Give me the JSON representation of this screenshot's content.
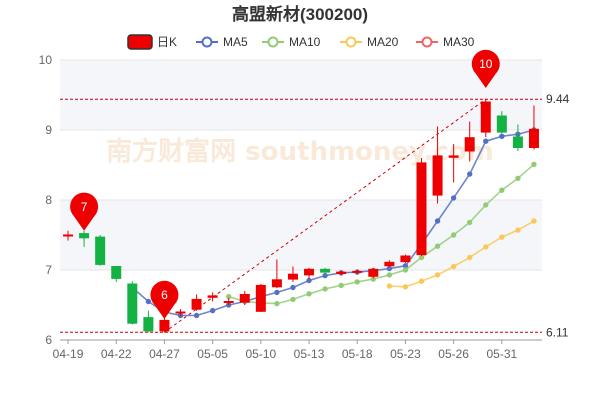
{
  "chart_data": {
    "type": "candlestick",
    "title": "高盟新材(300200)",
    "legend": [
      {
        "name": "日K",
        "color": "#ee0000"
      },
      {
        "name": "MA5",
        "color": "#5470c6"
      },
      {
        "name": "MA10",
        "color": "#91cc75"
      },
      {
        "name": "MA20",
        "color": "#fac858"
      },
      {
        "name": "MA30",
        "color": "#ee6666"
      }
    ],
    "legend_position": "top",
    "grid": true,
    "ylim": [
      6,
      10
    ],
    "yticks": [
      "6",
      "7",
      "8",
      "9",
      "10"
    ],
    "xticks": [
      "04-19",
      "04-22",
      "04-27",
      "05-05",
      "05-10",
      "05-13",
      "05-18",
      "05-23",
      "05-26",
      "05-31"
    ],
    "colors": {
      "up": "#ee0000",
      "down": "#14b143",
      "ref_line": "#cc0000",
      "pin": "#ee0000",
      "trend": "#cc0000"
    },
    "candles": [
      {
        "date": "04-19",
        "open": 7.49,
        "close": 7.5,
        "high": 7.56,
        "low": 7.42
      },
      {
        "date": "04-20",
        "open": 7.52,
        "close": 7.46,
        "high": 7.56,
        "low": 7.33
      },
      {
        "date": "04-21",
        "open": 7.47,
        "close": 7.08,
        "high": 7.5,
        "low": 7.06
      },
      {
        "date": "04-22",
        "open": 7.05,
        "close": 6.88,
        "high": 7.05,
        "low": 6.83
      },
      {
        "date": "04-25",
        "open": 6.8,
        "close": 6.24,
        "high": 6.84,
        "low": 6.22
      },
      {
        "date": "04-26",
        "open": 6.32,
        "close": 6.13,
        "high": 6.42,
        "low": 6.11
      },
      {
        "date": "04-27",
        "open": 6.13,
        "close": 6.28,
        "high": 6.34,
        "low": 6.11
      },
      {
        "date": "04-28",
        "open": 6.4,
        "close": 6.4,
        "high": 6.44,
        "low": 6.34
      },
      {
        "date": "04-29",
        "open": 6.44,
        "close": 6.58,
        "high": 6.65,
        "low": 6.42
      },
      {
        "date": "05-05",
        "open": 6.61,
        "close": 6.63,
        "high": 6.68,
        "low": 6.55
      },
      {
        "date": "05-06",
        "open": 6.55,
        "close": 6.55,
        "high": 6.6,
        "low": 6.5
      },
      {
        "date": "05-09",
        "open": 6.54,
        "close": 6.65,
        "high": 6.7,
        "low": 6.5
      },
      {
        "date": "05-10",
        "open": 6.41,
        "close": 6.78,
        "high": 6.8,
        "low": 6.4
      },
      {
        "date": "05-11",
        "open": 6.76,
        "close": 6.86,
        "high": 7.15,
        "low": 6.74
      },
      {
        "date": "05-12",
        "open": 6.87,
        "close": 6.94,
        "high": 7.05,
        "low": 6.83
      },
      {
        "date": "05-13",
        "open": 6.93,
        "close": 7.01,
        "high": 7.03,
        "low": 6.88
      },
      {
        "date": "05-16",
        "open": 7.01,
        "close": 6.97,
        "high": 7.03,
        "low": 6.94
      },
      {
        "date": "05-17",
        "open": 6.95,
        "close": 6.97,
        "high": 6.99,
        "low": 6.92
      },
      {
        "date": "05-18",
        "open": 6.97,
        "close": 6.98,
        "high": 7.01,
        "low": 6.94
      },
      {
        "date": "05-19",
        "open": 6.91,
        "close": 7.01,
        "high": 7.03,
        "low": 6.88
      },
      {
        "date": "05-20",
        "open": 7.06,
        "close": 7.11,
        "high": 7.14,
        "low": 7.04
      },
      {
        "date": "05-23",
        "open": 7.12,
        "close": 7.2,
        "high": 7.22,
        "low": 7.1
      },
      {
        "date": "05-24",
        "open": 7.22,
        "close": 8.53,
        "high": 8.6,
        "low": 7.2
      },
      {
        "date": "05-25",
        "open": 8.07,
        "close": 8.63,
        "high": 9.05,
        "low": 7.95
      },
      {
        "date": "05-26",
        "open": 8.61,
        "close": 8.63,
        "high": 8.8,
        "low": 8.25
      },
      {
        "date": "05-27",
        "open": 8.7,
        "close": 8.89,
        "high": 9.12,
        "low": 8.55
      },
      {
        "date": "05-30",
        "open": 8.97,
        "close": 9.4,
        "high": 9.44,
        "low": 8.9
      },
      {
        "date": "05-31",
        "open": 9.2,
        "close": 8.97,
        "high": 9.27,
        "low": 8.95
      },
      {
        "date": "06-01",
        "open": 8.9,
        "close": 8.75,
        "high": 9.08,
        "low": 8.7
      },
      {
        "date": "06-02",
        "open": 8.75,
        "close": 9.01,
        "high": 9.35,
        "low": 8.72
      }
    ],
    "series": [
      {
        "name": "MA5",
        "values": [
          null,
          null,
          null,
          null,
          6.75,
          6.55,
          6.4,
          6.35,
          6.35,
          6.42,
          6.5,
          6.55,
          6.62,
          6.68,
          6.75,
          6.85,
          6.92,
          6.96,
          6.97,
          6.99,
          7.02,
          7.06,
          7.37,
          7.7,
          8.03,
          8.37,
          8.84,
          8.91,
          8.94,
          9.0
        ]
      },
      {
        "name": "MA10",
        "values": [
          null,
          null,
          null,
          null,
          null,
          null,
          null,
          null,
          null,
          null,
          6.62,
          6.55,
          6.53,
          6.52,
          6.58,
          6.66,
          6.73,
          6.78,
          6.83,
          6.87,
          6.93,
          7.0,
          7.18,
          7.34,
          7.5,
          7.68,
          7.93,
          8.14,
          8.31,
          8.51
        ]
      },
      {
        "name": "MA20",
        "values": [
          null,
          null,
          null,
          null,
          null,
          null,
          null,
          null,
          null,
          null,
          null,
          null,
          null,
          null,
          null,
          null,
          null,
          null,
          null,
          null,
          6.77,
          6.76,
          6.84,
          6.93,
          7.05,
          7.18,
          7.33,
          7.47,
          7.57,
          7.7
        ]
      }
    ],
    "reference_lines": [
      {
        "label": "9.44",
        "value": 9.44
      },
      {
        "label": "6.11",
        "value": 6.11
      }
    ],
    "markers": [
      {
        "label": "7",
        "date": "04-20",
        "value": 7.56
      },
      {
        "label": "6",
        "date": "04-27",
        "value": 6.3
      },
      {
        "label": "10",
        "date": "05-30",
        "value": 9.6
      }
    ],
    "trend_line": {
      "from": {
        "date": "04-27",
        "value": 6.11
      },
      "to": {
        "date": "05-30",
        "value": 9.44
      }
    }
  },
  "watermark": "南方财富网 southmoney.com"
}
